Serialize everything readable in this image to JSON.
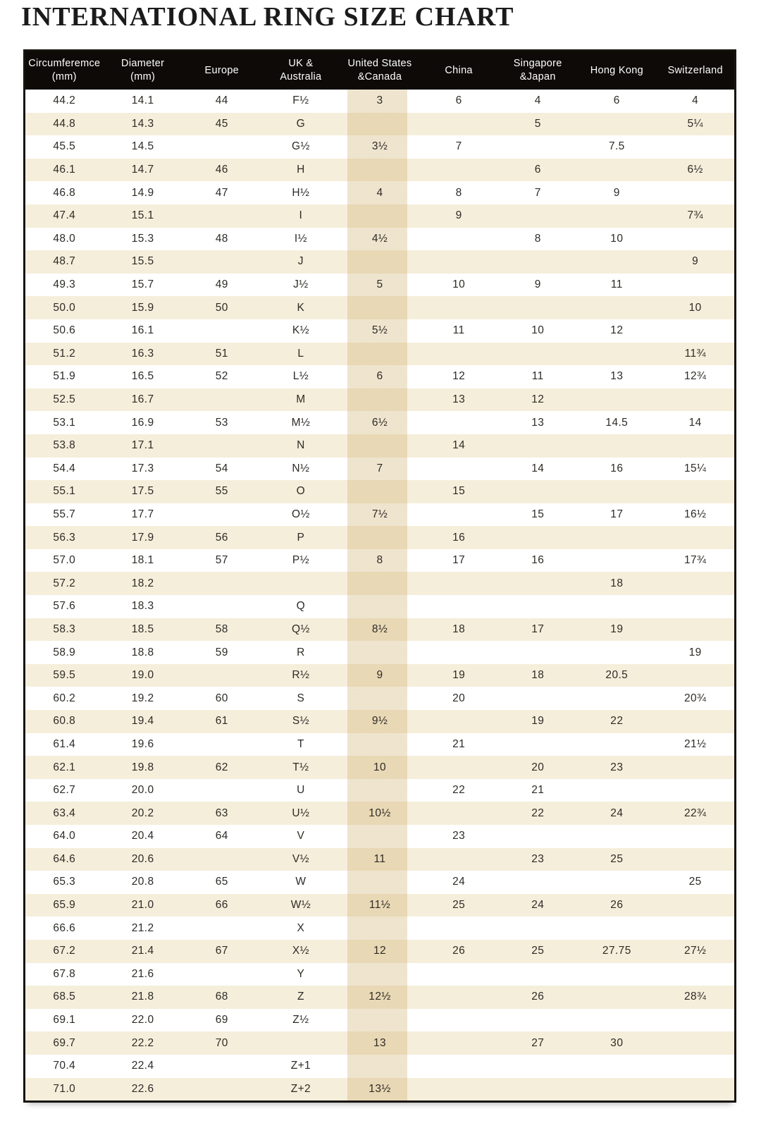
{
  "page": {
    "title": "INTERNATIONAL RING SIZE CHART"
  },
  "colors": {
    "header_bg": "#0d0a07",
    "header_text": "#ffffff",
    "stripe_row": "#f5eedb",
    "us_column_band": "#e9dcbb",
    "body_text": "#2e2b26",
    "table_border": "#17140f"
  },
  "table": {
    "columns": [
      "Circumferemce\n(mm)",
      "Diameter\n(mm)",
      "Europe",
      "UK &\nAustralia",
      "United States\n&Canada",
      "China",
      "Singapore\n&Japan",
      "Hong Kong",
      "Switzerland"
    ],
    "highlighted_column_index": 4,
    "rows": [
      [
        "44.2",
        "14.1",
        "44",
        "F½",
        "3",
        "6",
        "4",
        "6",
        "4"
      ],
      [
        "44.8",
        "14.3",
        "45",
        "G",
        "",
        "",
        "5",
        "",
        "5¼"
      ],
      [
        "45.5",
        "14.5",
        "",
        "G½",
        "3½",
        "7",
        "",
        "7.5",
        ""
      ],
      [
        "46.1",
        "14.7",
        "46",
        "H",
        "",
        "",
        "6",
        "",
        "6½"
      ],
      [
        "46.8",
        "14.9",
        "47",
        "H½",
        "4",
        "8",
        "7",
        "9",
        ""
      ],
      [
        "47.4",
        "15.1",
        "",
        "I",
        "",
        "9",
        "",
        "",
        "7¾"
      ],
      [
        "48.0",
        "15.3",
        "48",
        "I½",
        "4½",
        "",
        "8",
        "10",
        ""
      ],
      [
        "48.7",
        "15.5",
        "",
        "J",
        "",
        "",
        "",
        "",
        "9"
      ],
      [
        "49.3",
        "15.7",
        "49",
        "J½",
        "5",
        "10",
        "9",
        "11",
        ""
      ],
      [
        "50.0",
        "15.9",
        "50",
        "K",
        "",
        "",
        "",
        "",
        "10"
      ],
      [
        "50.6",
        "16.1",
        "",
        "K½",
        "5½",
        "11",
        "10",
        "12",
        ""
      ],
      [
        "51.2",
        "16.3",
        "51",
        "L",
        "",
        "",
        "",
        "",
        "11¾"
      ],
      [
        "51.9",
        "16.5",
        "52",
        "L½",
        "6",
        "12",
        "11",
        "13",
        "12¾"
      ],
      [
        "52.5",
        "16.7",
        "",
        "M",
        "",
        "13",
        "12",
        "",
        ""
      ],
      [
        "53.1",
        "16.9",
        "53",
        "M½",
        "6½",
        "",
        "13",
        "14.5",
        "14"
      ],
      [
        "53.8",
        "17.1",
        "",
        "N",
        "",
        "14",
        "",
        "",
        ""
      ],
      [
        "54.4",
        "17.3",
        "54",
        "N½",
        "7",
        "",
        "14",
        "16",
        "15¼"
      ],
      [
        "55.1",
        "17.5",
        "55",
        "O",
        "",
        "15",
        "",
        "",
        ""
      ],
      [
        "55.7",
        "17.7",
        "",
        "O½",
        "7½",
        "",
        "15",
        "17",
        "16½"
      ],
      [
        "56.3",
        "17.9",
        "56",
        "P",
        "",
        "16",
        "",
        "",
        ""
      ],
      [
        "57.0",
        "18.1",
        "57",
        "P½",
        "8",
        "17",
        "16",
        "",
        "17¾"
      ],
      [
        "57.2",
        "18.2",
        "",
        "",
        "",
        "",
        "",
        "18",
        ""
      ],
      [
        "57.6",
        "18.3",
        "",
        "Q",
        "",
        "",
        "",
        "",
        ""
      ],
      [
        "58.3",
        "18.5",
        "58",
        "Q½",
        "8½",
        "18",
        "17",
        "19",
        ""
      ],
      [
        "58.9",
        "18.8",
        "59",
        "R",
        "",
        "",
        "",
        "",
        "19"
      ],
      [
        "59.5",
        "19.0",
        "",
        "R½",
        "9",
        "19",
        "18",
        "20.5",
        ""
      ],
      [
        "60.2",
        "19.2",
        "60",
        "S",
        "",
        "20",
        "",
        "",
        "20¾"
      ],
      [
        "60.8",
        "19.4",
        "61",
        "S½",
        "9½",
        "",
        "19",
        "22",
        ""
      ],
      [
        "61.4",
        "19.6",
        "",
        "T",
        "",
        "21",
        "",
        "",
        "21½"
      ],
      [
        "62.1",
        "19.8",
        "62",
        "T½",
        "10",
        "",
        "20",
        "23",
        ""
      ],
      [
        "62.7",
        "20.0",
        "",
        "U",
        "",
        "22",
        "21",
        "",
        ""
      ],
      [
        "63.4",
        "20.2",
        "63",
        "U½",
        "10½",
        "",
        "22",
        "24",
        "22¾"
      ],
      [
        "64.0",
        "20.4",
        "64",
        "V",
        "",
        "23",
        "",
        "",
        ""
      ],
      [
        "64.6",
        "20.6",
        "",
        "V½",
        "11",
        "",
        "23",
        "25",
        ""
      ],
      [
        "65.3",
        "20.8",
        "65",
        "W",
        "",
        "24",
        "",
        "",
        "25"
      ],
      [
        "65.9",
        "21.0",
        "66",
        "W½",
        "11½",
        "25",
        "24",
        "26",
        ""
      ],
      [
        "66.6",
        "21.2",
        "",
        "X",
        "",
        "",
        "",
        "",
        ""
      ],
      [
        "67.2",
        "21.4",
        "67",
        "X½",
        "12",
        "26",
        "25",
        "27.75",
        "27½"
      ],
      [
        "67.8",
        "21.6",
        "",
        "Y",
        "",
        "",
        "",
        "",
        ""
      ],
      [
        "68.5",
        "21.8",
        "68",
        "Z",
        "12½",
        "",
        "26",
        "",
        "28¾"
      ],
      [
        "69.1",
        "22.0",
        "69",
        "Z½",
        "",
        "",
        "",
        "",
        ""
      ],
      [
        "69.7",
        "22.2",
        "70",
        "",
        "13",
        "",
        "27",
        "30",
        ""
      ],
      [
        "70.4",
        "22.4",
        "",
        "Z+1",
        "",
        "",
        "",
        "",
        ""
      ],
      [
        "71.0",
        "22.6",
        "",
        "Z+2",
        "13½",
        "",
        "",
        "",
        ""
      ]
    ]
  }
}
